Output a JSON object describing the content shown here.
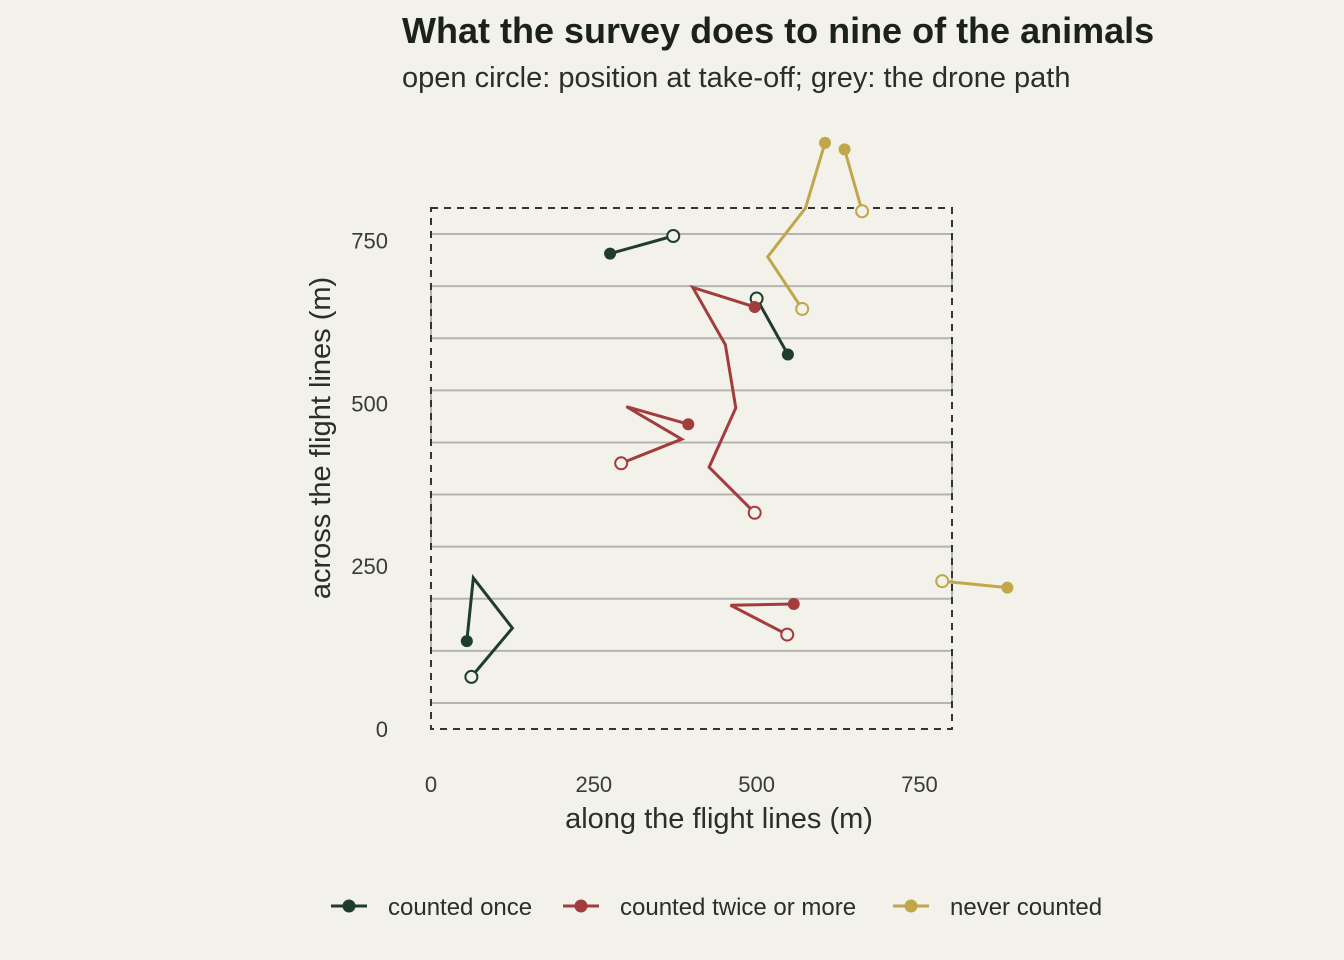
{
  "chart_data": {
    "type": "line",
    "title": "What the survey does to nine of the animals",
    "subtitle": "open circle: position at take-off; grey: the drone path",
    "xlabel": "along the flight lines (m)",
    "ylabel": "across the flight lines (m)",
    "xlim": [
      0,
      800
    ],
    "ylim": [
      0,
      800
    ],
    "x_ticks": [
      0,
      250,
      500,
      750
    ],
    "y_ticks": [
      0,
      250,
      500,
      750
    ],
    "grid": false,
    "legend_position": "bottom",
    "study_area": {
      "x": [
        0,
        800
      ],
      "y": [
        0,
        800
      ]
    },
    "drone_path_y": [
      40,
      120,
      200,
      280,
      360,
      440,
      520,
      600,
      680,
      760
    ],
    "colors": {
      "counted once": "#1f3d2c",
      "counted twice or more": "#a33c3c",
      "never counted": "#c1a64a",
      "drone_path": "#b4b4b0",
      "study_area_border": "#333333"
    },
    "legend": [
      "counted once",
      "counted twice or more",
      "never counted"
    ],
    "series": [
      {
        "name": "counted once",
        "tracks": [
          {
            "points": [
              [
                62,
                80
              ],
              [
                125,
                155
              ],
              [
                65,
                232
              ],
              [
                55,
                135
              ]
            ]
          },
          {
            "points": [
              [
                372,
                757
              ],
              [
                275,
                730
              ]
            ]
          },
          {
            "points": [
              [
                500,
                661
              ],
              [
                548,
                575
              ]
            ]
          }
        ]
      },
      {
        "name": "counted twice or more",
        "tracks": [
          {
            "points": [
              [
                292,
                408
              ],
              [
                385,
                445
              ],
              [
                300,
                495
              ],
              [
                395,
                468
              ]
            ]
          },
          {
            "points": [
              [
                497,
                332
              ],
              [
                427,
                402
              ],
              [
                468,
                493
              ],
              [
                452,
                590
              ],
              [
                402,
                678
              ],
              [
                497,
                648
              ]
            ]
          },
          {
            "points": [
              [
                547,
                145
              ],
              [
                460,
                190
              ],
              [
                557,
                192
              ]
            ]
          }
        ]
      },
      {
        "name": "never counted",
        "tracks": [
          {
            "points": [
              [
                570,
                645
              ],
              [
                517,
                725
              ],
              [
                575,
                800
              ],
              [
                605,
                900
              ]
            ]
          },
          {
            "points": [
              [
                662,
                795
              ],
              [
                635,
                890
              ]
            ]
          },
          {
            "points": [
              [
                785,
                227
              ],
              [
                885,
                217
              ]
            ]
          }
        ]
      }
    ]
  }
}
